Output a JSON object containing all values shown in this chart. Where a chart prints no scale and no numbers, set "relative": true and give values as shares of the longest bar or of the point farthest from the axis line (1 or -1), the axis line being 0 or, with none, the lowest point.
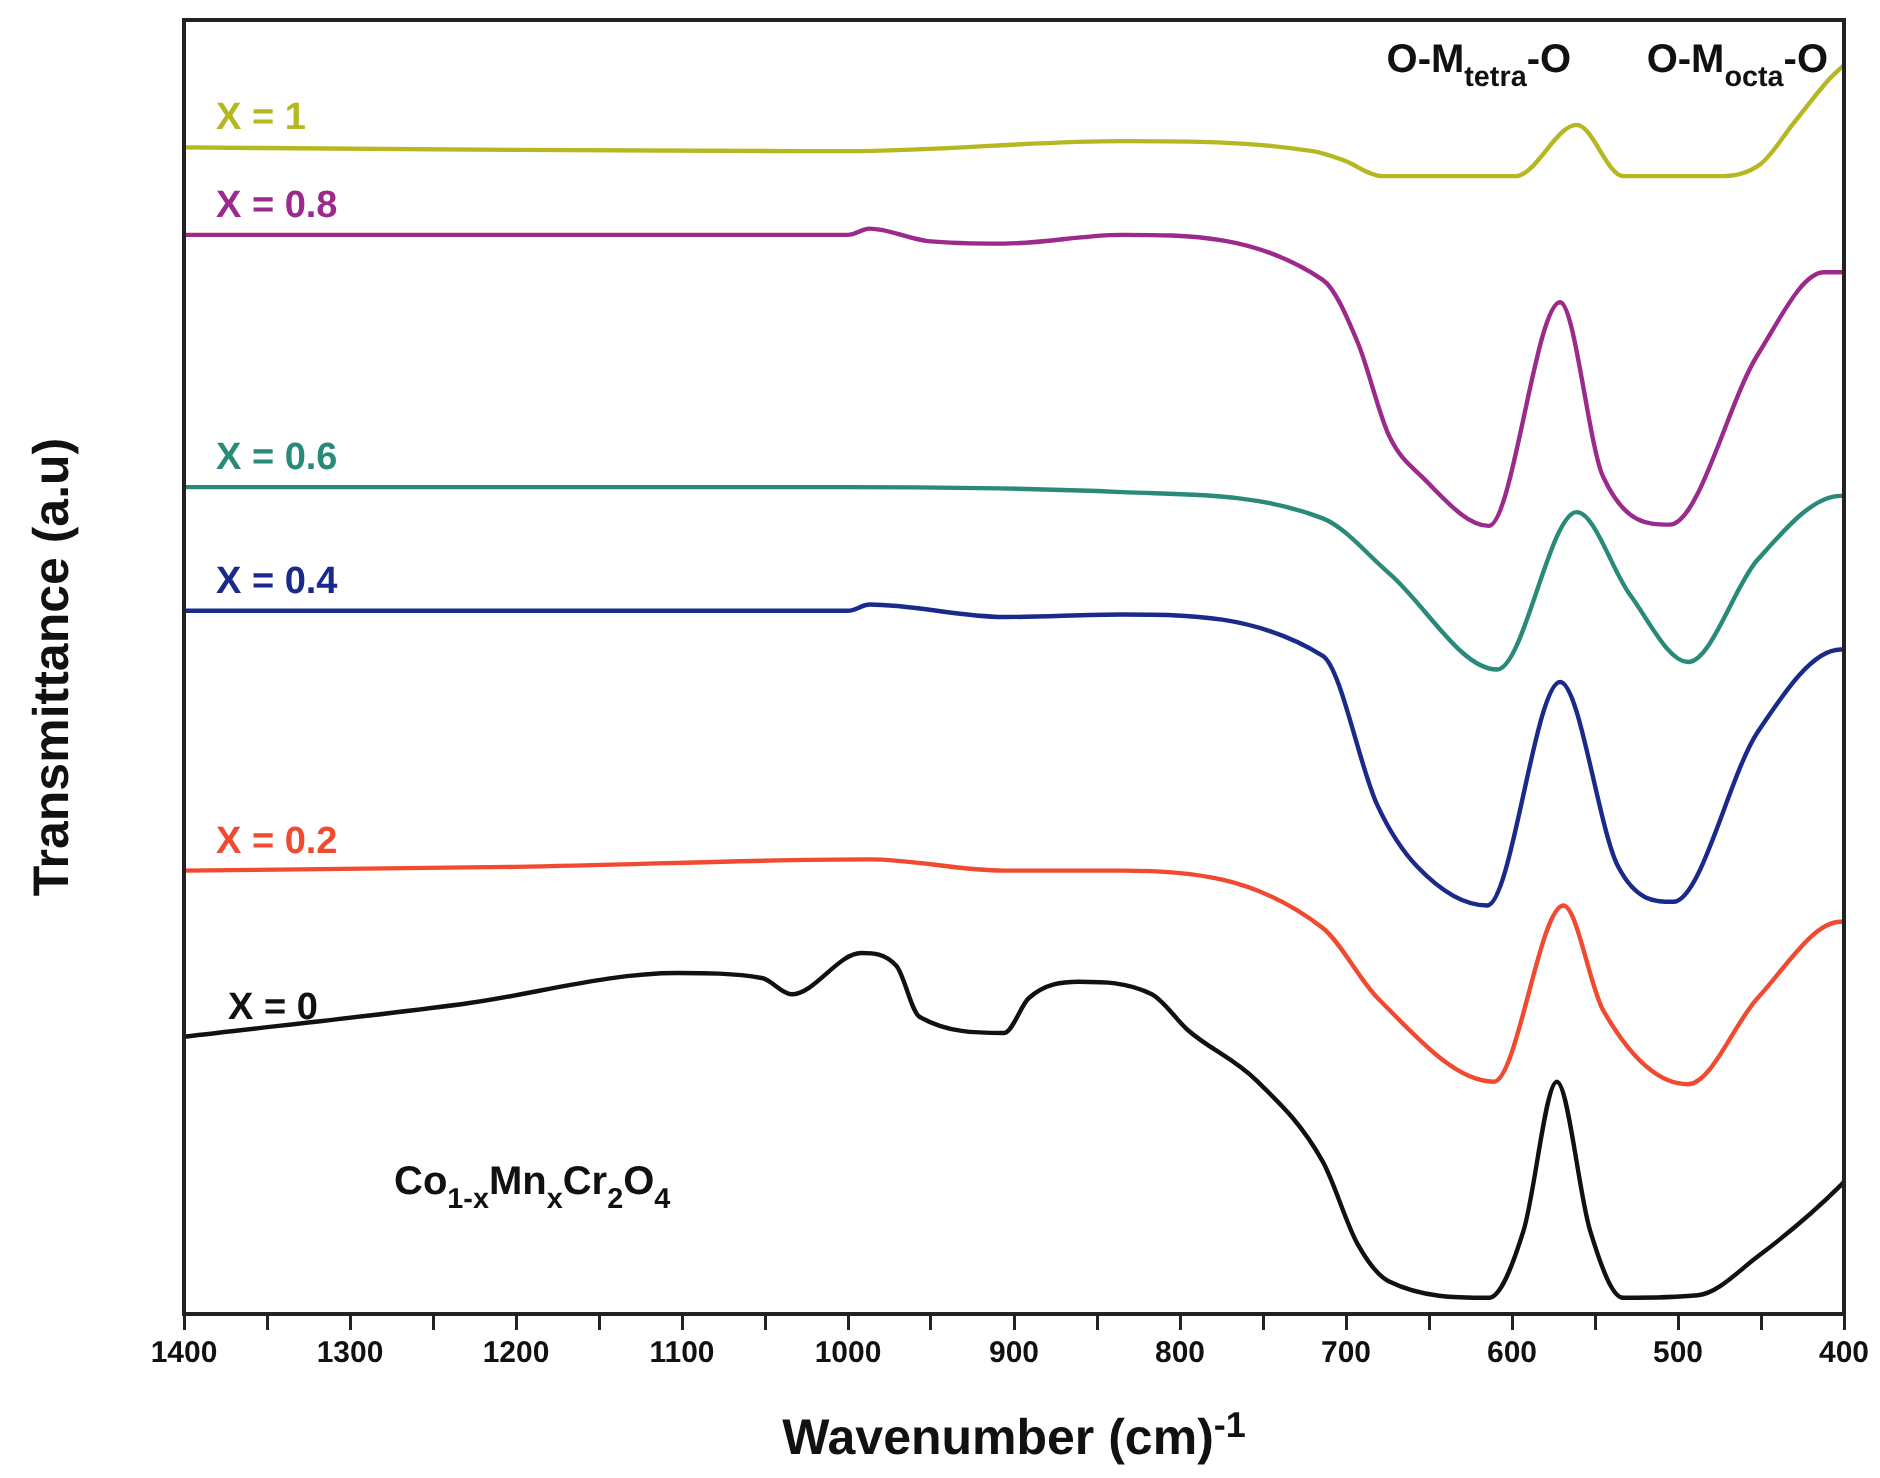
{
  "chart_data": {
    "type": "line",
    "xlabel": "Wavenumber (cm)$^{-1}$",
    "ylabel": "Transmittance (a.u)",
    "relative": true,
    "legend": false,
    "grid": false,
    "marker": "none",
    "line_style": "solid",
    "tick_labels": "x",
    "xlim": [
      1400,
      400
    ],
    "xticks": [
      1400,
      {
        "value": 1350,
        "label": null
      },
      1300,
      {
        "value": 1250,
        "label": null
      },
      1200,
      {
        "value": 1150,
        "label": null
      },
      1100,
      {
        "value": 1050,
        "label": null
      },
      1000,
      {
        "value": 950,
        "label": null
      },
      900,
      {
        "value": 850,
        "label": null
      },
      800,
      {
        "value": 750,
        "label": null
      },
      700,
      {
        "value": 650,
        "label": null
      },
      600,
      {
        "value": 550,
        "label": null
      },
      500,
      {
        "value": 450,
        "label": null
      },
      400
    ],
    "annotations": [
      "O-M$_{tetra}$-O",
      "O-M$_{octa}$-O",
      "Co$_{1-x}$Mn$_{x}$Cr$_{2}$O$_{4}$"
    ],
    "series": [
      {
        "name": "X = 1",
        "color": "#b5b820",
        "x": [
          1400,
          1200,
          1000,
          835,
          720,
          702,
          678,
          598,
          561,
          533,
          476,
          450,
          430,
          410,
          400
        ],
        "values": [
          0.934,
          0.932,
          0.931,
          0.939,
          0.931,
          0.924,
          0.911,
          0.911,
          0.952,
          0.911,
          0.911,
          0.921,
          0.954,
          0.987,
          1
        ]
      },
      {
        "name": "X = 0.8",
        "color": "#9b2a8a",
        "x": [
          1400,
          1200,
          1000,
          987,
          952,
          906,
          835,
          714,
          693,
          674,
          654,
          614,
          571,
          545,
          505,
          452,
          412,
          400
        ],
        "values": [
          0.864,
          0.864,
          0.864,
          0.869,
          0.859,
          0.857,
          0.864,
          0.828,
          0.778,
          0.703,
          0.67,
          0.631,
          0.81,
          0.67,
          0.632,
          0.768,
          0.834,
          0.834
        ]
      },
      {
        "name": "X = 0.6",
        "color": "#2a8a7a",
        "x": [
          1400,
          1200,
          1000,
          835,
          714,
          674,
          609,
          561,
          529,
          494,
          452,
          402,
          400
        ],
        "values": [
          0.662,
          0.662,
          0.662,
          0.658,
          0.637,
          0.593,
          0.516,
          0.642,
          0.576,
          0.522,
          0.604,
          0.655,
          0.655
        ]
      },
      {
        "name": "X = 0.4",
        "color": "#1a2a8a",
        "x": [
          1400,
          1200,
          1000,
          987,
          906,
          835,
          714,
          681,
          657,
          615,
          571,
          536,
          503,
          452,
          402,
          400
        ],
        "values": [
          0.563,
          0.563,
          0.563,
          0.568,
          0.558,
          0.56,
          0.527,
          0.407,
          0.358,
          0.327,
          0.506,
          0.358,
          0.33,
          0.466,
          0.532,
          0.532
        ]
      },
      {
        "name": "X = 0.2",
        "color": "#f04a30",
        "x": [
          1400,
          1200,
          987,
          906,
          835,
          714,
          681,
          611,
          569,
          545,
          494,
          452,
          402,
          400
        ],
        "values": [
          0.355,
          0.358,
          0.364,
          0.355,
          0.355,
          0.309,
          0.253,
          0.186,
          0.327,
          0.243,
          0.184,
          0.253,
          0.314,
          0.314
        ]
      },
      {
        "name": "X = 0",
        "color": "#111111",
        "x": [
          1400,
          1233,
          1103,
          1052,
          1034,
          992,
          971,
          957,
          906,
          891,
          861,
          817,
          795,
          754,
          714,
          693,
          674,
          614,
          593,
          573,
          553,
          533,
          488,
          452,
          402,
          400
        ],
        "values": [
          0.222,
          0.248,
          0.273,
          0.269,
          0.256,
          0.289,
          0.279,
          0.238,
          0.225,
          0.253,
          0.266,
          0.256,
          0.227,
          0.187,
          0.122,
          0.056,
          0.026,
          0.013,
          0.067,
          0.186,
          0.067,
          0.013,
          0.015,
          0.046,
          0.103,
          0.106
        ]
      }
    ]
  }
}
